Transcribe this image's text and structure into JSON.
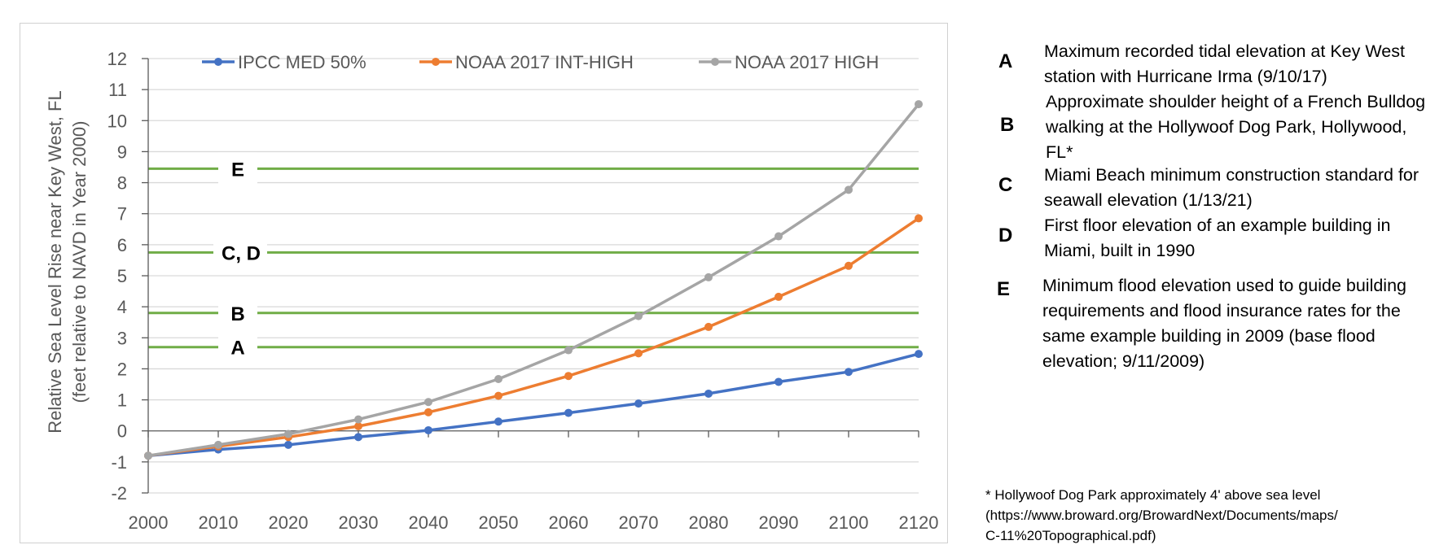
{
  "chart_data": {
    "type": "line",
    "xlabel": "",
    "ylabel_lines": [
      "Relative Sea Level Rise near Key West, FL",
      "(feet relative to NAVD in Year 2000)"
    ],
    "x": [
      2000,
      2010,
      2020,
      2030,
      2040,
      2050,
      2060,
      2070,
      2080,
      2090,
      2100,
      2120
    ],
    "x_tick_labels": [
      "2000",
      "2010",
      "2020",
      "2030",
      "2040",
      "2050",
      "2060",
      "2070",
      "2080",
      "2090",
      "2100",
      "2120"
    ],
    "ylim": [
      -2,
      12
    ],
    "y_ticks": [
      -2,
      -1,
      0,
      1,
      2,
      3,
      4,
      5,
      6,
      7,
      8,
      9,
      10,
      11,
      12
    ],
    "y_tick_labels": [
      "-2",
      "-1",
      "0",
      "1",
      "2",
      "3",
      "4",
      "5",
      "6",
      "7",
      "8",
      "9",
      "10",
      "11",
      "12"
    ],
    "grid": true,
    "legend_position": "top",
    "series": [
      {
        "name": "IPCC MED 50%",
        "color": "#4472C4",
        "values": [
          -0.8,
          -0.6,
          -0.45,
          -0.2,
          0.02,
          0.3,
          0.58,
          0.88,
          1.2,
          1.58,
          1.9,
          2.48
        ]
      },
      {
        "name": "NOAA 2017 INT-HIGH",
        "color": "#ED7D31",
        "values": [
          -0.8,
          -0.5,
          -0.2,
          0.15,
          0.6,
          1.13,
          1.77,
          2.5,
          3.35,
          4.32,
          5.32,
          6.85
        ]
      },
      {
        "name": "NOAA 2017 HIGH",
        "color": "#A5A5A5",
        "values": [
          -0.8,
          -0.45,
          -0.1,
          0.37,
          0.93,
          1.67,
          2.6,
          3.7,
          4.95,
          6.27,
          7.77,
          10.53
        ]
      }
    ],
    "reference_lines": [
      {
        "label": "A",
        "value": 2.7,
        "color": "#70AD47"
      },
      {
        "label": "B",
        "value": 3.8,
        "color": "#70AD47"
      },
      {
        "label": "C, D",
        "value": 5.75,
        "color": "#70AD47"
      },
      {
        "label": "E",
        "value": 8.45,
        "color": "#70AD47"
      }
    ]
  },
  "legend_entries": [
    {
      "letter": "A",
      "text": "Maximum recorded tidal elevation at Key West station with Hurricane Irma (9/10/17)"
    },
    {
      "letter": "B",
      "text": "Approximate shoulder height of a French Bulldog walking at the Hollywoof Dog Park, Hollywood, FL*"
    },
    {
      "letter": "C",
      "text": "Miami Beach minimum construction standard for seawall elevation (1/13/21)"
    },
    {
      "letter": "D",
      "text": "First floor elevation of an example building in Miami, built in 1990"
    },
    {
      "letter": "E",
      "text": "Minimum flood elevation used to guide building requirements and flood insurance rates for the same example building in 2009 (base flood elevation; 9/11/2009)"
    }
  ],
  "footnote": {
    "line1": "* Hollywoof Dog Park approximately 4' above sea level",
    "line2": "(https://www.broward.org/BrowardNext/Documents/maps/",
    "line3": "C-11%20Topographical.pdf)"
  }
}
